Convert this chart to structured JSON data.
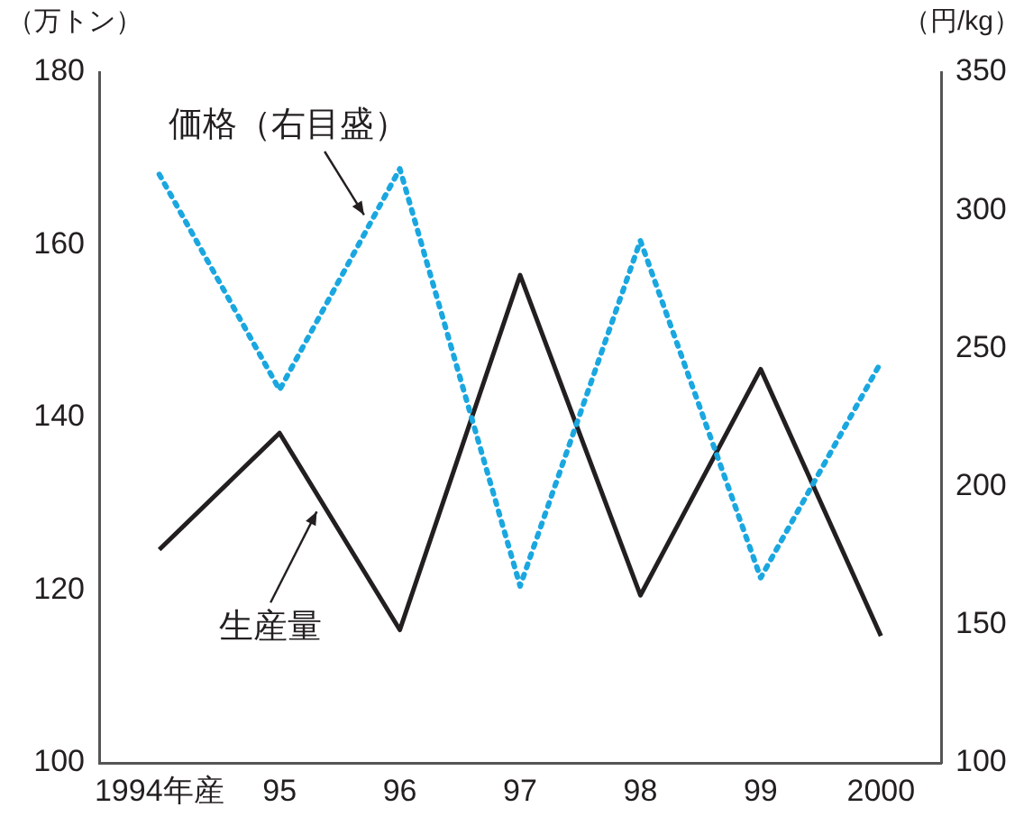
{
  "chart_data": {
    "type": "line",
    "ylabel": "（万トン）",
    "y2label": "（円/kg）",
    "categories": [
      "1994年産",
      "95",
      "96",
      "97",
      "98",
      "99",
      "2000"
    ],
    "series": [
      {
        "name": "価格（右目盛）",
        "color": "#1aa7e0",
        "axis": "y2",
        "line_style": "dotted",
        "values": [
          313,
          235,
          315,
          164,
          289,
          167,
          245
        ]
      },
      {
        "name": "生産量",
        "color": "#231f20",
        "line_style": "solid",
        "values": [
          124.7,
          138.2,
          115.4,
          156.5,
          119.4,
          145.6,
          114.7
        ]
      }
    ],
    "ylim": [
      100,
      180
    ],
    "yticks": [
      100,
      120,
      140,
      160,
      180
    ],
    "y2lim": [
      100,
      350
    ],
    "y2ticks": [
      100,
      150,
      200,
      250,
      300,
      350
    ],
    "grid": false,
    "legend": false,
    "marker": "none"
  }
}
